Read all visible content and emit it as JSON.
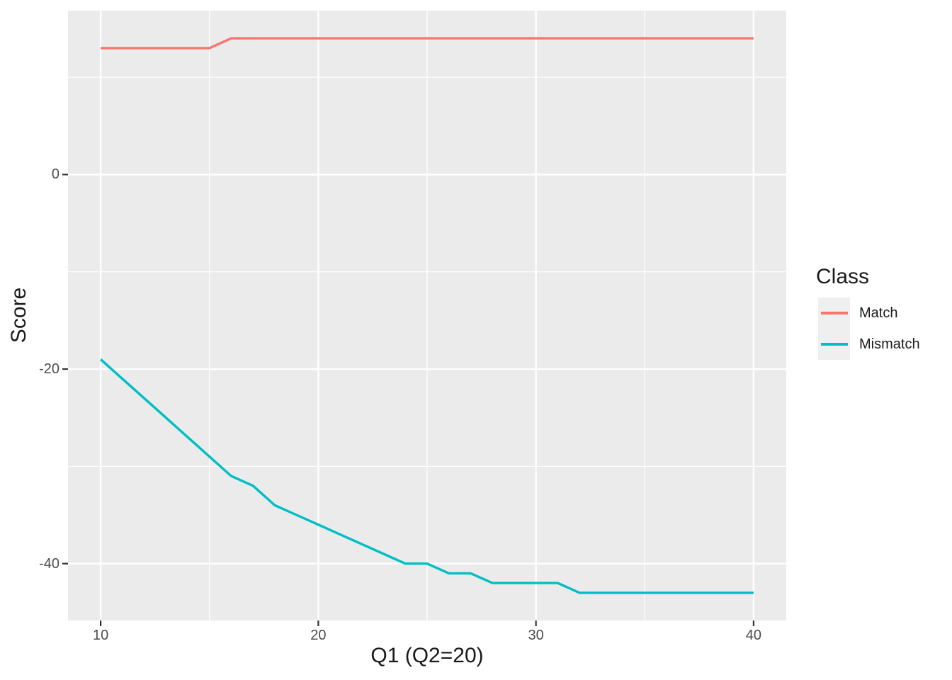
{
  "chart_data": {
    "type": "line",
    "title": "",
    "xlabel": "Q1 (Q2=20)",
    "ylabel": "Score",
    "xlim": [
      8.5,
      41.5
    ],
    "ylim": [
      -45.85,
      16.85
    ],
    "x_major_ticks": [
      10,
      20,
      30,
      40
    ],
    "x_minor_gridlines": [
      15,
      25,
      35
    ],
    "y_major_ticks": [
      0,
      -20,
      -40
    ],
    "y_minor_gridlines": [
      10,
      -10,
      -30
    ],
    "x": [
      10,
      11,
      12,
      13,
      14,
      15,
      16,
      17,
      18,
      19,
      20,
      21,
      22,
      23,
      24,
      25,
      26,
      27,
      28,
      29,
      30,
      31,
      32,
      33,
      34,
      35,
      36,
      37,
      38,
      39,
      40
    ],
    "series": [
      {
        "name": "Match",
        "color": "#F8766D",
        "values": [
          13,
          13,
          13,
          13,
          13,
          13,
          14,
          14,
          14,
          14,
          14,
          14,
          14,
          14,
          14,
          14,
          14,
          14,
          14,
          14,
          14,
          14,
          14,
          14,
          14,
          14,
          14,
          14,
          14,
          14,
          14
        ]
      },
      {
        "name": "Mismatch",
        "color": "#00BFC4",
        "values": [
          -19,
          -21,
          -23,
          -25,
          -27,
          -29,
          -31,
          -32,
          -34,
          -35,
          -36,
          -37,
          -38,
          -39,
          -40,
          -40,
          -41,
          -41,
          -42,
          -42,
          -42,
          -42,
          -43,
          -43,
          -43,
          -43,
          -43,
          -43,
          -43,
          -43,
          -43
        ]
      }
    ],
    "legend": {
      "title": "Class",
      "position": "right"
    },
    "style": {
      "panel_background": "#EBEBEB",
      "gridline_color": "#FFFFFF",
      "tick_mark_color": "#333333",
      "tick_label_color": "#4D4D4D",
      "legend_key_background": "#EFEFEF"
    }
  }
}
